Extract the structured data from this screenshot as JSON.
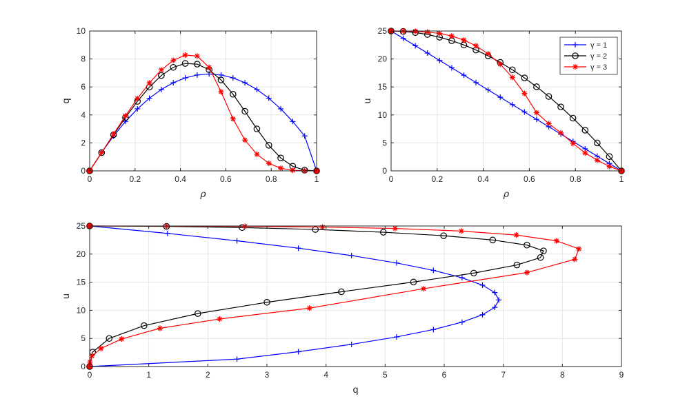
{
  "chart_data": [
    {
      "type": "line",
      "id": "top-left",
      "xlabel": "ρ",
      "ylabel": "q",
      "xlim": [
        0,
        1
      ],
      "ylim": [
        0,
        10
      ],
      "xticks": [
        0,
        0.2,
        0.4,
        0.6,
        0.8,
        1
      ],
      "xtick_labels": [
        "0",
        "0.2",
        "0.4",
        "0.6",
        "0.8",
        "1"
      ],
      "yticks": [
        0,
        2,
        4,
        6,
        8,
        10
      ],
      "ytick_labels": [
        "0",
        "2",
        "4",
        "6",
        "8",
        "10"
      ],
      "grid": true,
      "series": [
        {
          "name": "γ = 1",
          "color": "#0000ff",
          "marker": "plus",
          "x": [
            0,
            0.0526,
            0.1053,
            0.1579,
            0.2105,
            0.2632,
            0.3158,
            0.3684,
            0.4211,
            0.4737,
            0.5263,
            0.5789,
            0.6316,
            0.6842,
            0.7368,
            0.7895,
            0.8421,
            0.8947,
            0.9474,
            1
          ],
          "y": [
            0,
            1.316,
            2.493,
            3.532,
            4.432,
            5.194,
            5.817,
            6.302,
            6.648,
            6.856,
            6.925,
            6.856,
            6.648,
            6.302,
            5.817,
            5.194,
            4.432,
            3.532,
            2.493,
            0
          ]
        },
        {
          "name": "γ = 2",
          "color": "#000000",
          "marker": "circle",
          "x": [
            0,
            0.0526,
            0.1053,
            0.1579,
            0.2105,
            0.2632,
            0.3158,
            0.3684,
            0.4211,
            0.4737,
            0.5263,
            0.5789,
            0.6316,
            0.6842,
            0.7368,
            0.7895,
            0.8421,
            0.8947,
            0.9474,
            1
          ],
          "y": [
            0,
            1.3,
            2.58,
            3.82,
            4.97,
            5.99,
            6.82,
            7.4,
            7.68,
            7.63,
            7.23,
            6.5,
            5.48,
            4.26,
            3.0,
            1.83,
            0.92,
            0.33,
            0.05,
            0
          ]
        },
        {
          "name": "γ = 3",
          "color": "#ff0000",
          "marker": "star",
          "x": [
            0,
            0.0526,
            0.1053,
            0.1579,
            0.2105,
            0.2632,
            0.3158,
            0.3684,
            0.4211,
            0.4737,
            0.5263,
            0.5789,
            0.6316,
            0.6842,
            0.7368,
            0.7895,
            0.8421,
            0.8947,
            0.9474,
            1
          ],
          "y": [
            0,
            1.3,
            2.63,
            3.94,
            5.17,
            6.29,
            7.22,
            7.9,
            8.28,
            8.21,
            7.4,
            5.65,
            3.72,
            2.2,
            1.19,
            0.54,
            0.19,
            0.04,
            0.005,
            0
          ]
        }
      ]
    },
    {
      "type": "line",
      "id": "top-right",
      "xlabel": "ρ",
      "ylabel": "u",
      "xlim": [
        0,
        1
      ],
      "ylim": [
        0,
        25
      ],
      "xticks": [
        0,
        0.2,
        0.4,
        0.6,
        0.8,
        1
      ],
      "xtick_labels": [
        "0",
        "0.2",
        "0.4",
        "0.6",
        "0.8",
        "1"
      ],
      "yticks": [
        0,
        5,
        10,
        15,
        20,
        25
      ],
      "ytick_labels": [
        "0",
        "5",
        "10",
        "15",
        "20",
        "25"
      ],
      "grid": true,
      "legend": {
        "placement": "top-right",
        "entries": [
          "γ = 1",
          "γ = 2",
          "γ = 3"
        ]
      },
      "series": [
        {
          "name": "γ = 1",
          "color": "#0000ff",
          "marker": "plus",
          "x": [
            0,
            0.0526,
            0.1053,
            0.1579,
            0.2105,
            0.2632,
            0.3158,
            0.3684,
            0.4211,
            0.4737,
            0.5263,
            0.5789,
            0.6316,
            0.6842,
            0.7368,
            0.7895,
            0.8421,
            0.8947,
            0.9474,
            1
          ],
          "y": [
            25,
            23.684,
            22.368,
            21.053,
            19.737,
            18.421,
            17.105,
            15.789,
            14.474,
            13.158,
            11.842,
            10.526,
            9.211,
            7.895,
            6.579,
            5.263,
            3.947,
            2.632,
            1.316,
            0
          ]
        },
        {
          "name": "γ = 2",
          "color": "#000000",
          "marker": "circle",
          "x": [
            0,
            0.0526,
            0.1053,
            0.1579,
            0.2105,
            0.2632,
            0.3158,
            0.3684,
            0.4211,
            0.4737,
            0.5263,
            0.5789,
            0.6316,
            0.6842,
            0.7368,
            0.7895,
            0.8421,
            0.8947,
            0.9474,
            1
          ],
          "y": [
            25,
            24.93,
            24.72,
            24.38,
            23.89,
            23.27,
            22.51,
            21.6,
            20.57,
            19.39,
            18.07,
            16.62,
            15.03,
            13.3,
            11.43,
            9.42,
            7.27,
            4.99,
            2.56,
            0
          ]
        },
        {
          "name": "γ = 3",
          "color": "#ff0000",
          "marker": "star",
          "x": [
            0,
            0.0526,
            0.1053,
            0.1579,
            0.2105,
            0.2632,
            0.3158,
            0.3684,
            0.4211,
            0.4737,
            0.5263,
            0.5789,
            0.6316,
            0.6842,
            0.7368,
            0.7895,
            0.8421,
            0.8947,
            0.9474,
            1
          ],
          "y": [
            25,
            24.99,
            24.94,
            24.81,
            24.56,
            24.1,
            23.39,
            22.35,
            20.93,
            19.07,
            16.72,
            13.84,
            10.39,
            8.46,
            6.8,
            4.9,
            3.2,
            1.9,
            0.8,
            0
          ]
        }
      ]
    },
    {
      "type": "line",
      "id": "bottom",
      "xlabel": "q",
      "ylabel": "u",
      "xlim": [
        0,
        9
      ],
      "ylim": [
        0,
        25
      ],
      "xticks": [
        0,
        1,
        2,
        3,
        4,
        5,
        6,
        7,
        8,
        9
      ],
      "xtick_labels": [
        "0",
        "1",
        "2",
        "3",
        "4",
        "5",
        "6",
        "7",
        "8",
        "9"
      ],
      "yticks": [
        0,
        5,
        10,
        15,
        20,
        25
      ],
      "ytick_labels": [
        "0",
        "5",
        "10",
        "15",
        "20",
        "25"
      ],
      "grid": true,
      "series": [
        {
          "name": "γ = 1",
          "color": "#0000ff",
          "marker": "plus",
          "x": [
            0,
            1.316,
            2.493,
            3.532,
            4.432,
            5.194,
            5.817,
            6.302,
            6.648,
            6.856,
            6.925,
            6.856,
            6.648,
            6.302,
            5.817,
            5.194,
            4.432,
            3.532,
            2.493,
            0
          ],
          "y": [
            25,
            23.684,
            22.368,
            21.053,
            19.737,
            18.421,
            17.105,
            15.789,
            14.474,
            13.158,
            11.842,
            10.526,
            9.211,
            7.895,
            6.579,
            5.263,
            3.947,
            2.632,
            1.316,
            0
          ]
        },
        {
          "name": "γ = 2",
          "color": "#000000",
          "marker": "circle",
          "x": [
            0,
            1.3,
            2.58,
            3.82,
            4.97,
            5.99,
            6.82,
            7.4,
            7.68,
            7.63,
            7.23,
            6.5,
            5.48,
            4.26,
            3.0,
            1.83,
            0.92,
            0.33,
            0.05,
            0
          ],
          "y": [
            25,
            24.93,
            24.72,
            24.38,
            23.89,
            23.27,
            22.51,
            21.6,
            20.57,
            19.39,
            18.07,
            16.62,
            15.03,
            13.3,
            11.43,
            9.42,
            7.27,
            4.99,
            2.56,
            0
          ]
        },
        {
          "name": "γ = 3",
          "color": "#ff0000",
          "marker": "star",
          "x": [
            0,
            1.3,
            2.63,
            3.94,
            5.17,
            6.29,
            7.22,
            7.9,
            8.28,
            8.21,
            7.4,
            5.65,
            3.72,
            2.2,
            1.19,
            0.54,
            0.19,
            0.04,
            0.005,
            0
          ],
          "y": [
            25,
            24.99,
            24.94,
            24.81,
            24.56,
            24.1,
            23.39,
            22.35,
            20.93,
            19.07,
            16.72,
            13.84,
            10.39,
            8.46,
            6.8,
            4.9,
            3.2,
            1.9,
            0.8,
            0
          ]
        }
      ]
    }
  ]
}
